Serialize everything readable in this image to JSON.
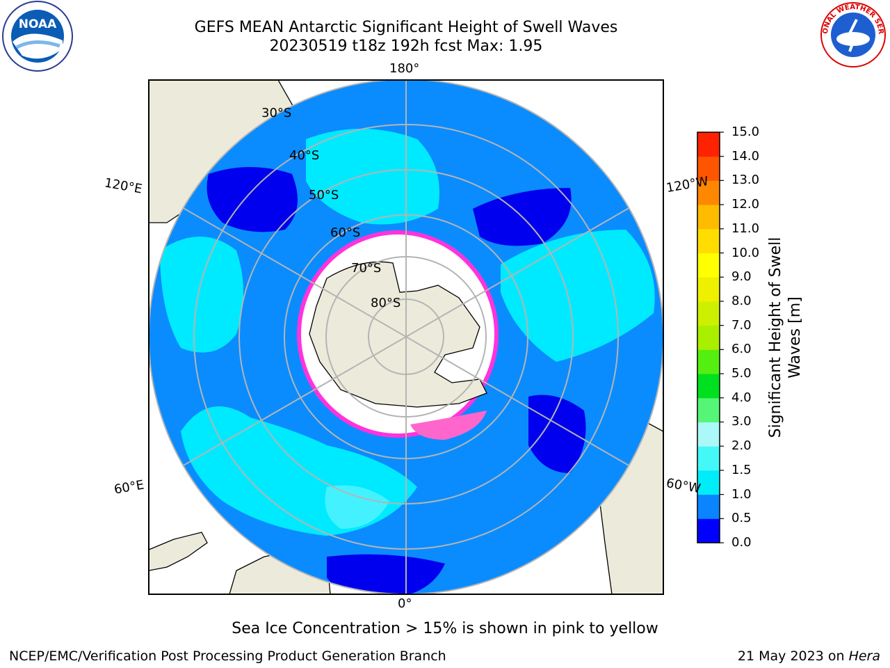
{
  "header": {
    "title_line1": "GEFS MEAN Antarctic Significant Height of Swell Waves",
    "title_line2": "20230519 t18z 192h fcst   Max: 1.95"
  },
  "logos": {
    "left": {
      "icon": "noaa-logo",
      "text": "NOAA"
    },
    "right": {
      "icon": "national-weather-service-logo",
      "text": "NATIONAL WEATHER SERVICE"
    }
  },
  "map": {
    "projection": "south-polar-stereographic",
    "lon_labels": {
      "top": "180°",
      "bottom": "0°",
      "upper_left": "120°E",
      "upper_right": "120°W",
      "lower_left": "60°E",
      "lower_right": "60°W"
    },
    "lat_labels": [
      "30°S",
      "40°S",
      "50°S",
      "60°S",
      "70°S",
      "80°S"
    ],
    "colors": {
      "land": "#ecebdb",
      "ice_free_land": "#ffffff",
      "ocean_low": "#0a8cff",
      "ocean_mid": "#00e5ff",
      "ocean_dark": "#0000ee",
      "ice_pink": "#ff33dd",
      "grid": "#b4b4b4"
    }
  },
  "colorbar": {
    "label": "Significant Height of Swell Waves [m]",
    "ticks": [
      "0.0",
      "0.5",
      "1.0",
      "1.5",
      "2.0",
      "3.0",
      "4.0",
      "5.0",
      "6.0",
      "7.0",
      "8.0",
      "9.0",
      "10.0",
      "11.0",
      "12.0",
      "13.0",
      "14.0",
      "15.0"
    ],
    "colors": [
      "#0000ff",
      "#0a84ff",
      "#00ecf8",
      "#44f8f8",
      "#aaf8f8",
      "#55f577",
      "#00e01f",
      "#55ee11",
      "#aaee00",
      "#ccf000",
      "#eef000",
      "#ffff00",
      "#ffdd00",
      "#ffbb00",
      "#ff8800",
      "#ff5500",
      "#ff2200"
    ]
  },
  "note": "Sea Ice Concentration > 15% is shown in pink to yellow",
  "footer": {
    "left": "NCEP/EMC/Verification Post Processing Product Generation Branch",
    "right_prefix": "21 May 2023 on ",
    "right_host": "Hera"
  }
}
